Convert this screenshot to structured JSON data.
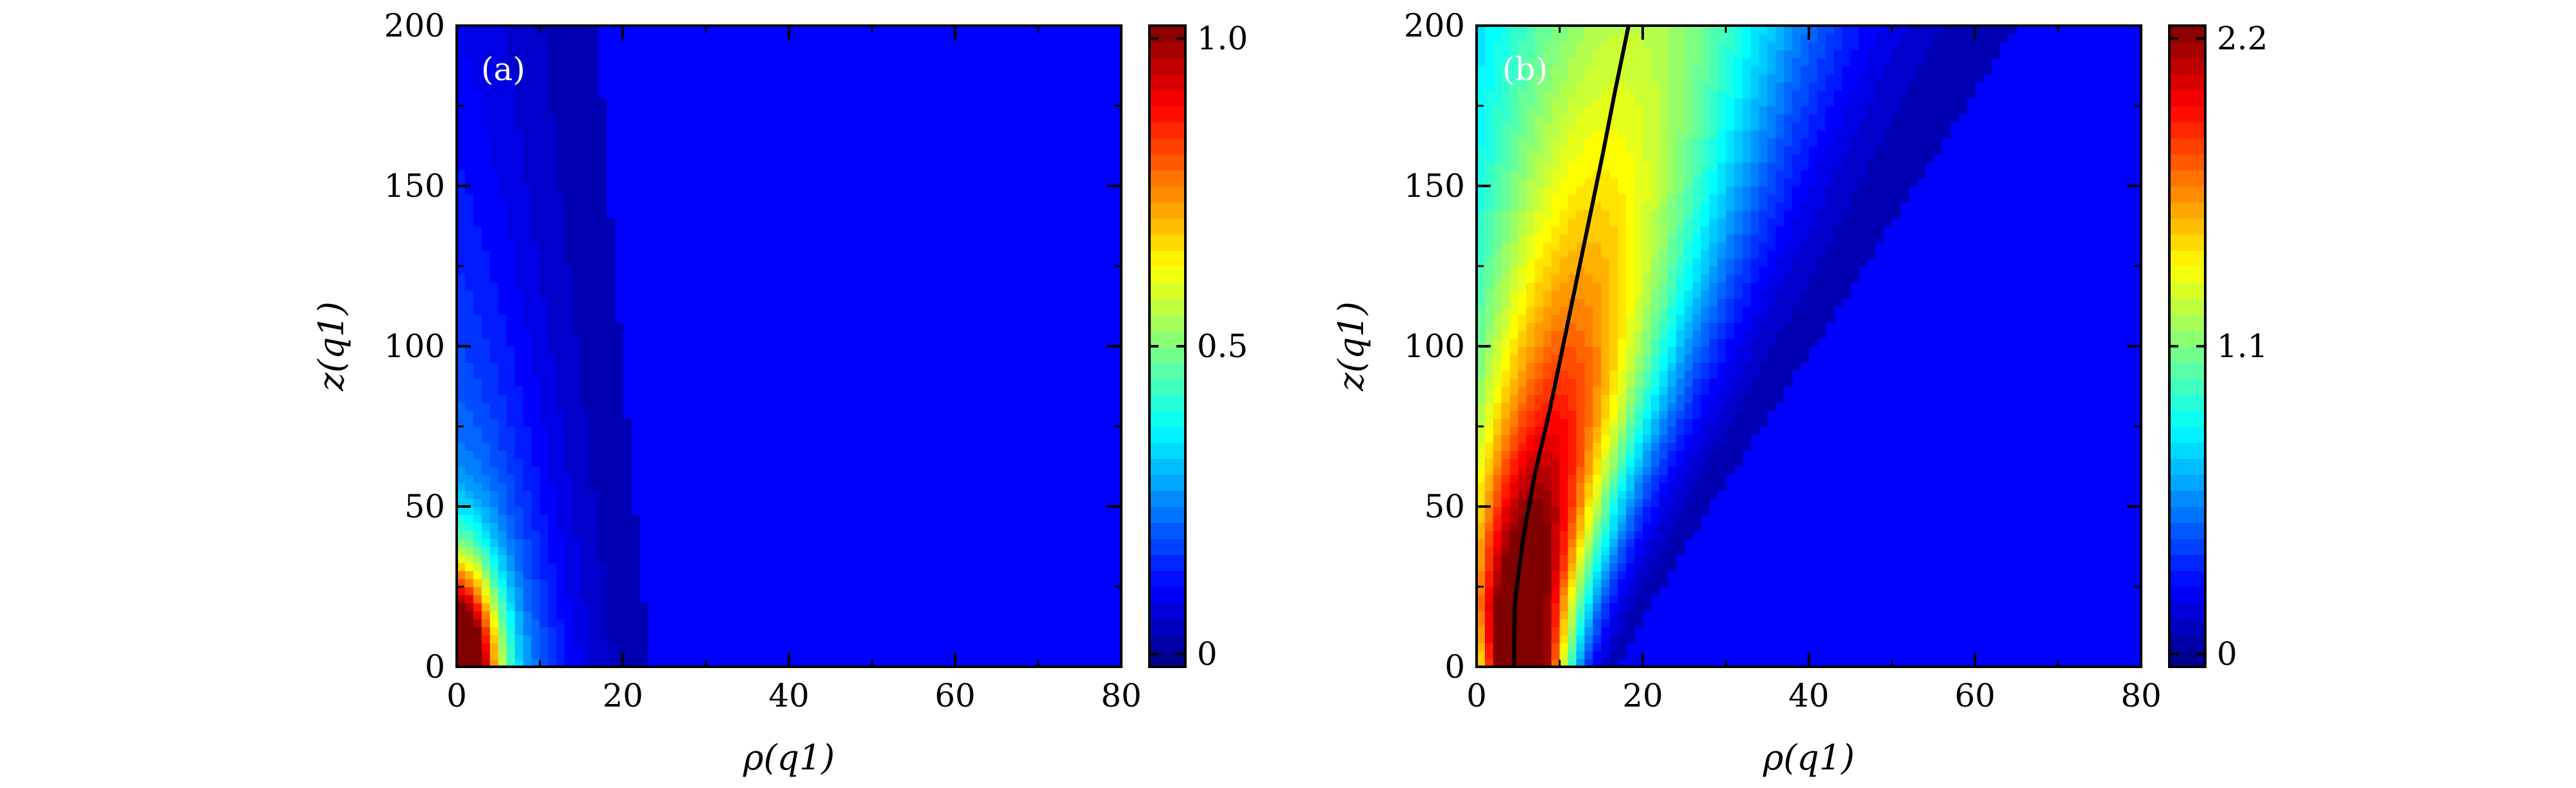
{
  "chart_data": [
    {
      "type": "heatmap",
      "panel_label": "(a)",
      "xlabel": "ρ(q1)",
      "ylabel": "z(q1)",
      "xlim": [
        0,
        80
      ],
      "ylim": [
        0,
        200
      ],
      "x_ticks": [
        "0",
        "20",
        "40",
        "60",
        "80"
      ],
      "y_ticks": [
        "0",
        "50",
        "100",
        "150",
        "200"
      ],
      "colorbar": {
        "range": [
          0,
          1.0
        ],
        "tick_values": [
          0,
          0.5,
          1.0
        ],
        "tick_labels": [
          "0",
          "0.5",
          "1.0"
        ]
      },
      "colormap": [
        "#0000ff",
        "#0060ff",
        "#00e0ff",
        "#00ff80",
        "#40ff00",
        "#ffff00",
        "#ff8000",
        "#ff0000"
      ],
      "field_description_values": {
        "peak_value": 1.0,
        "peak_location": [
          0,
          8
        ]
      }
    },
    {
      "type": "heatmap",
      "panel_label": "(b)",
      "xlabel": "ρ(q1)",
      "ylabel": "z(q1)",
      "xlim": [
        0,
        80
      ],
      "ylim": [
        0,
        200
      ],
      "x_ticks": [
        "0",
        "20",
        "40",
        "60",
        "80"
      ],
      "y_ticks": [
        "0",
        "50",
        "100",
        "150",
        "200"
      ],
      "colorbar": {
        "range": [
          0,
          2.2
        ],
        "tick_values": [
          0,
          1.1,
          2.2
        ],
        "tick_labels": [
          "0",
          "1.1",
          "2.2"
        ]
      },
      "colormap": [
        "#0000ff",
        "#0060ff",
        "#00e0ff",
        "#00ff80",
        "#40ff00",
        "#ffff00",
        "#ff8000",
        "#ff0000"
      ],
      "field_description_values": {
        "peak_value": 2.2,
        "peak_location": [
          5,
          22
        ]
      },
      "overlay_line": {
        "color": "#000000",
        "points": [
          [
            4.5,
            0
          ],
          [
            4.6,
            20
          ],
          [
            5.6,
            40
          ],
          [
            7.0,
            60
          ],
          [
            8.8,
            80
          ],
          [
            10.4,
            100
          ],
          [
            12.0,
            120
          ],
          [
            13.6,
            140
          ],
          [
            15.2,
            160
          ],
          [
            16.7,
            180
          ],
          [
            18.3,
            200
          ]
        ]
      }
    }
  ]
}
